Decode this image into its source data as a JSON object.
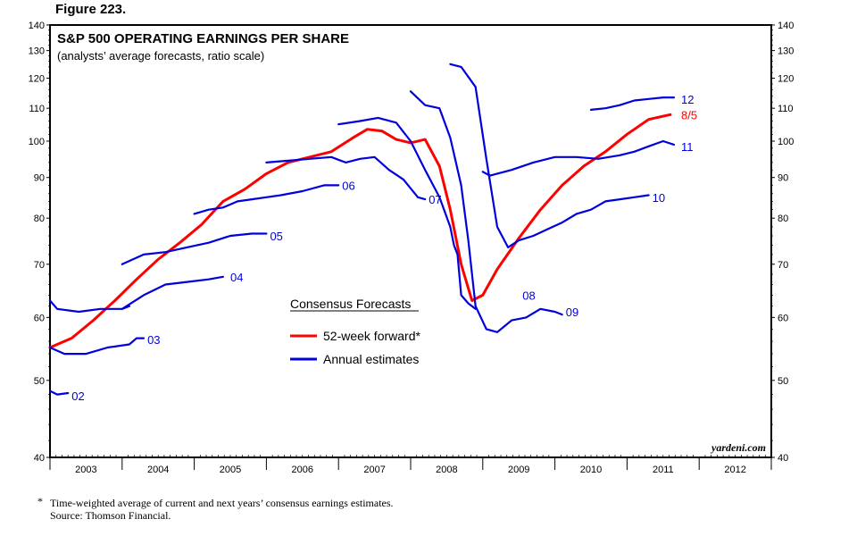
{
  "figure_label": "Figure 223.",
  "footnote": {
    "marker": "*",
    "line1": "Time-weighted average of current and next years’ consensus earnings estimates.",
    "line2": "Source: Thomson Financial."
  },
  "chart_data": {
    "type": "line",
    "title": "S&P 500 OPERATING EARNINGS PER SHARE",
    "subtitle": "(analysts’ average forecasts, ratio scale)",
    "watermark": "yardeni.com",
    "y_scale": "log",
    "ylim": [
      40,
      140
    ],
    "y_ticks": [
      40,
      50,
      60,
      70,
      80,
      90,
      100,
      110,
      120,
      130,
      140
    ],
    "y_tick_labels": [
      "40",
      "50",
      "60",
      "70",
      "80",
      "90",
      "100",
      "110",
      "120",
      "130",
      "140"
    ],
    "x_range": [
      2003.0,
      2013.0
    ],
    "x_categories": [
      "2003",
      "2004",
      "2005",
      "2006",
      "2007",
      "2008",
      "2009",
      "2010",
      "2011",
      "2012"
    ],
    "grid": false,
    "legend": {
      "title": "Consensus Forecasts",
      "placement": "center",
      "entries": [
        {
          "label": "52-week forward*",
          "color": "#ff0000"
        },
        {
          "label": "Annual estimates",
          "color": "#0000dd"
        }
      ]
    },
    "colors": {
      "forward": "#ff0000",
      "annual": "#0000dd",
      "text_blue": "#0000dd",
      "text_red": "#ff0000"
    },
    "series": [
      {
        "name": "52-week forward*",
        "label": "8/5",
        "role": "forward",
        "points": [
          [
            2003.0,
            55.0
          ],
          [
            2003.3,
            56.5
          ],
          [
            2003.6,
            59.5
          ],
          [
            2003.9,
            63.0
          ],
          [
            2004.2,
            67.0
          ],
          [
            2004.5,
            71.0
          ],
          [
            2004.8,
            74.5
          ],
          [
            2005.1,
            78.5
          ],
          [
            2005.4,
            84.0
          ],
          [
            2005.7,
            87.0
          ],
          [
            2006.0,
            91.0
          ],
          [
            2006.3,
            94.0
          ],
          [
            2006.6,
            95.5
          ],
          [
            2006.9,
            97.0
          ],
          [
            2007.2,
            101.0
          ],
          [
            2007.4,
            103.5
          ],
          [
            2007.6,
            103.0
          ],
          [
            2007.8,
            100.5
          ],
          [
            2008.0,
            99.5
          ],
          [
            2008.2,
            100.5
          ],
          [
            2008.4,
            93.0
          ],
          [
            2008.55,
            82.0
          ],
          [
            2008.7,
            70.0
          ],
          [
            2008.85,
            63.0
          ],
          [
            2009.0,
            64.0
          ],
          [
            2009.2,
            69.0
          ],
          [
            2009.5,
            75.5
          ],
          [
            2009.8,
            82.0
          ],
          [
            2010.1,
            88.0
          ],
          [
            2010.4,
            93.0
          ],
          [
            2010.7,
            97.0
          ],
          [
            2011.0,
            102.0
          ],
          [
            2011.3,
            106.5
          ],
          [
            2011.6,
            108.0
          ]
        ]
      },
      {
        "name": "Annual estimates",
        "label": "02",
        "role": "annual",
        "points": [
          [
            2003.0,
            48.5
          ],
          [
            2003.1,
            48.0
          ],
          [
            2003.25,
            48.2
          ]
        ]
      },
      {
        "name": "Annual estimates",
        "label": "03",
        "role": "annual",
        "points": [
          [
            2003.0,
            63.0
          ],
          [
            2003.1,
            61.5
          ],
          [
            2003.4,
            61.0
          ],
          [
            2003.7,
            61.5
          ],
          [
            2004.0,
            61.5
          ],
          [
            2004.1,
            62.0
          ]
        ]
      },
      {
        "name": "Annual estimates",
        "label": "03",
        "role": "annual",
        "points": [
          [
            2003.0,
            55.0
          ],
          [
            2003.2,
            54.0
          ],
          [
            2003.5,
            54.0
          ],
          [
            2003.8,
            55.0
          ],
          [
            2004.1,
            55.5
          ],
          [
            2004.2,
            56.5
          ],
          [
            2004.3,
            56.5
          ]
        ]
      },
      {
        "name": "Annual estimates",
        "label": "04",
        "role": "annual",
        "points": [
          [
            2004.0,
            61.5
          ],
          [
            2004.3,
            64.0
          ],
          [
            2004.6,
            66.0
          ],
          [
            2004.9,
            66.5
          ],
          [
            2005.2,
            67.0
          ],
          [
            2005.4,
            67.5
          ]
        ]
      },
      {
        "name": "Annual estimates",
        "label": "05",
        "role": "annual",
        "points": [
          [
            2004.0,
            70.0
          ],
          [
            2004.3,
            72.0
          ],
          [
            2004.6,
            72.5
          ],
          [
            2004.9,
            73.5
          ],
          [
            2005.2,
            74.5
          ],
          [
            2005.5,
            76.0
          ],
          [
            2005.8,
            76.5
          ],
          [
            2006.0,
            76.5
          ]
        ]
      },
      {
        "name": "Annual estimates",
        "label": "06",
        "role": "annual",
        "points": [
          [
            2005.0,
            81.0
          ],
          [
            2005.2,
            82.0
          ],
          [
            2005.4,
            82.5
          ],
          [
            2005.6,
            84.0
          ],
          [
            2005.8,
            84.5
          ],
          [
            2006.0,
            85.0
          ],
          [
            2006.2,
            85.5
          ],
          [
            2006.5,
            86.5
          ],
          [
            2006.8,
            88.0
          ],
          [
            2007.0,
            88.0
          ]
        ]
      },
      {
        "name": "Annual estimates",
        "label": "07",
        "role": "annual",
        "points": [
          [
            2006.0,
            94.0
          ],
          [
            2006.3,
            94.5
          ],
          [
            2006.6,
            95.0
          ],
          [
            2006.9,
            95.5
          ],
          [
            2007.1,
            94.0
          ],
          [
            2007.3,
            95.0
          ],
          [
            2007.5,
            95.5
          ],
          [
            2007.7,
            92.0
          ],
          [
            2007.9,
            89.5
          ],
          [
            2008.1,
            85.0
          ],
          [
            2008.2,
            84.5
          ]
        ]
      },
      {
        "name": "Annual estimates",
        "label": "08",
        "role": "annual",
        "points": [
          [
            2007.0,
            105.0
          ],
          [
            2007.3,
            106.0
          ],
          [
            2007.55,
            107.0
          ],
          [
            2007.8,
            105.5
          ],
          [
            2008.0,
            100.0
          ],
          [
            2008.2,
            92.0
          ],
          [
            2008.4,
            85.0
          ],
          [
            2008.55,
            78.0
          ],
          [
            2008.6,
            74.0
          ],
          [
            2008.65,
            72.0
          ],
          [
            2008.7,
            64.0
          ],
          [
            2008.8,
            62.5
          ],
          [
            2008.9,
            61.5
          ]
        ]
      },
      {
        "name": "Annual estimates",
        "label": "09",
        "role": "annual",
        "points": [
          [
            2008.0,
            115.5
          ],
          [
            2008.2,
            111.0
          ],
          [
            2008.4,
            110.0
          ],
          [
            2008.55,
            101.0
          ],
          [
            2008.7,
            88.0
          ],
          [
            2008.8,
            75.0
          ],
          [
            2008.9,
            62.0
          ],
          [
            2009.05,
            58.0
          ],
          [
            2009.2,
            57.5
          ],
          [
            2009.4,
            59.5
          ],
          [
            2009.6,
            60.0
          ],
          [
            2009.8,
            61.5
          ],
          [
            2010.0,
            61.0
          ],
          [
            2010.1,
            60.5
          ]
        ]
      },
      {
        "name": "Annual estimates",
        "label": "10",
        "role": "annual",
        "points": [
          [
            2008.55,
            125.0
          ],
          [
            2008.7,
            124.0
          ],
          [
            2008.9,
            117.0
          ],
          [
            2009.05,
            95.0
          ],
          [
            2009.2,
            78.0
          ],
          [
            2009.35,
            73.5
          ],
          [
            2009.5,
            75.0
          ],
          [
            2009.7,
            76.0
          ],
          [
            2009.9,
            77.5
          ],
          [
            2010.1,
            79.0
          ],
          [
            2010.3,
            81.0
          ],
          [
            2010.5,
            82.0
          ],
          [
            2010.7,
            84.0
          ],
          [
            2010.9,
            84.5
          ],
          [
            2011.1,
            85.0
          ],
          [
            2011.3,
            85.5
          ]
        ]
      },
      {
        "name": "Annual estimates",
        "label": "11",
        "role": "annual",
        "points": [
          [
            2009.0,
            91.5
          ],
          [
            2009.1,
            90.5
          ],
          [
            2009.4,
            92.0
          ],
          [
            2009.7,
            94.0
          ],
          [
            2010.0,
            95.5
          ],
          [
            2010.3,
            95.5
          ],
          [
            2010.6,
            95.0
          ],
          [
            2010.9,
            96.0
          ],
          [
            2011.1,
            97.0
          ],
          [
            2011.3,
            98.5
          ],
          [
            2011.5,
            100.0
          ],
          [
            2011.65,
            99.0
          ]
        ]
      },
      {
        "name": "Annual estimates",
        "label": "12",
        "role": "annual",
        "points": [
          [
            2010.5,
            109.5
          ],
          [
            2010.7,
            110.0
          ],
          [
            2010.9,
            111.0
          ],
          [
            2011.1,
            112.5
          ],
          [
            2011.3,
            113.0
          ],
          [
            2011.5,
            113.5
          ],
          [
            2011.65,
            113.5
          ]
        ]
      }
    ],
    "annotations": [
      {
        "text": "02",
        "color": "blue",
        "x": 2003.3,
        "y": 47.8
      },
      {
        "text": "03",
        "color": "blue",
        "x": 2004.35,
        "y": 56.3
      },
      {
        "text": "04",
        "color": "blue",
        "x": 2005.5,
        "y": 67.5
      },
      {
        "text": "05",
        "color": "blue",
        "x": 2006.05,
        "y": 76.0
      },
      {
        "text": "06",
        "color": "blue",
        "x": 2007.05,
        "y": 88.0
      },
      {
        "text": "07",
        "color": "blue",
        "x": 2008.25,
        "y": 84.5
      },
      {
        "text": "08",
        "color": "blue",
        "x": 2009.55,
        "y": 64.0
      },
      {
        "text": "09",
        "color": "blue",
        "x": 2010.15,
        "y": 61.0
      },
      {
        "text": "10",
        "color": "blue",
        "x": 2011.35,
        "y": 85.0
      },
      {
        "text": "11",
        "color": "blue",
        "x": 2011.75,
        "y": 98.5
      },
      {
        "text": "12",
        "color": "blue",
        "x": 2011.75,
        "y": 113.0
      },
      {
        "text": "8/5",
        "color": "red",
        "x": 2011.75,
        "y": 108.0
      }
    ]
  }
}
